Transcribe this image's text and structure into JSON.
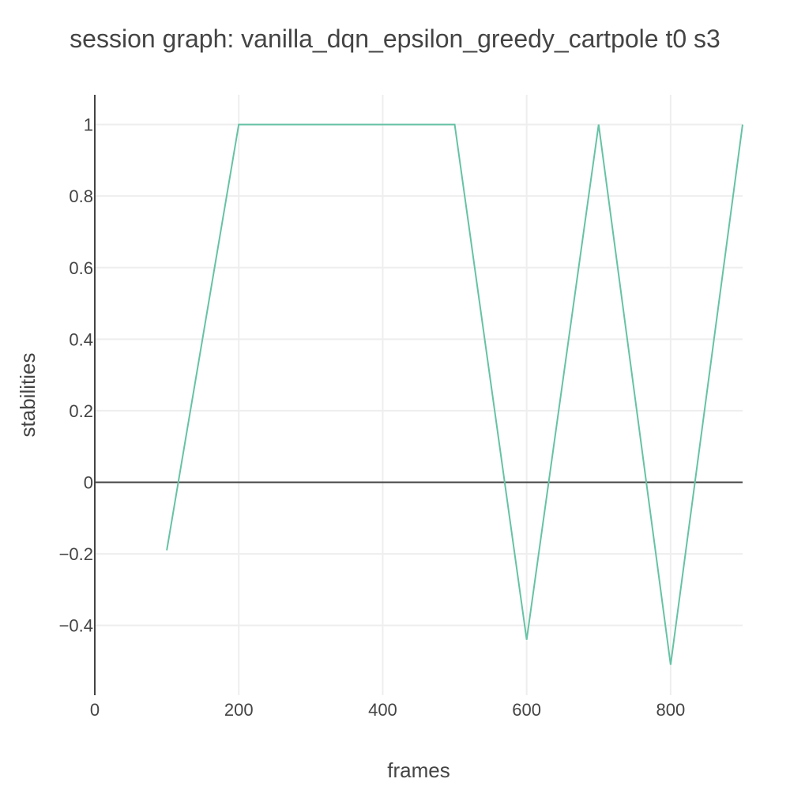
{
  "chart_data": {
    "type": "line",
    "title": "session graph: vanilla_dqn_epsilon_greedy_cartpole t0 s3",
    "xlabel": "frames",
    "ylabel": "stabilities",
    "xlim": [
      0,
      900
    ],
    "ylim": [
      -0.595,
      1.083
    ],
    "grid": true,
    "x_ticks": [
      0,
      200,
      400,
      600,
      800
    ],
    "y_ticks": [
      -0.4,
      -0.2,
      0,
      0.2,
      0.4,
      0.6,
      0.8,
      1
    ],
    "x_tick_labels": [
      "0",
      "200",
      "400",
      "600",
      "800"
    ],
    "y_tick_labels": [
      "−0.4",
      "−0.2",
      "0",
      "0.2",
      "0.4",
      "0.6",
      "0.8",
      "1"
    ],
    "series": [
      {
        "color": "#66c2a5",
        "x": [
          100,
          200,
          300,
          400,
          500,
          600,
          700,
          800,
          900
        ],
        "y": [
          -0.19,
          1,
          1,
          1,
          1,
          -0.44,
          1,
          -0.51,
          1
        ]
      }
    ]
  }
}
